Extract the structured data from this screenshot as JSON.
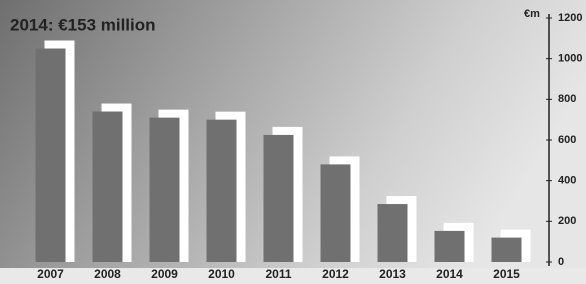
{
  "chart_data": {
    "type": "bar",
    "subtitle": "2014: €153 million",
    "y_axis_label": "€m",
    "categories": [
      "2007",
      "2008",
      "2009",
      "2010",
      "2011",
      "2012",
      "2013",
      "2014",
      "2015"
    ],
    "values": [
      1050,
      740,
      710,
      700,
      625,
      480,
      285,
      153,
      120
    ],
    "color": "#707070",
    "ylim": [
      0,
      1200
    ],
    "yticks": [
      0,
      200,
      400,
      600,
      800,
      1000,
      1200
    ]
  }
}
